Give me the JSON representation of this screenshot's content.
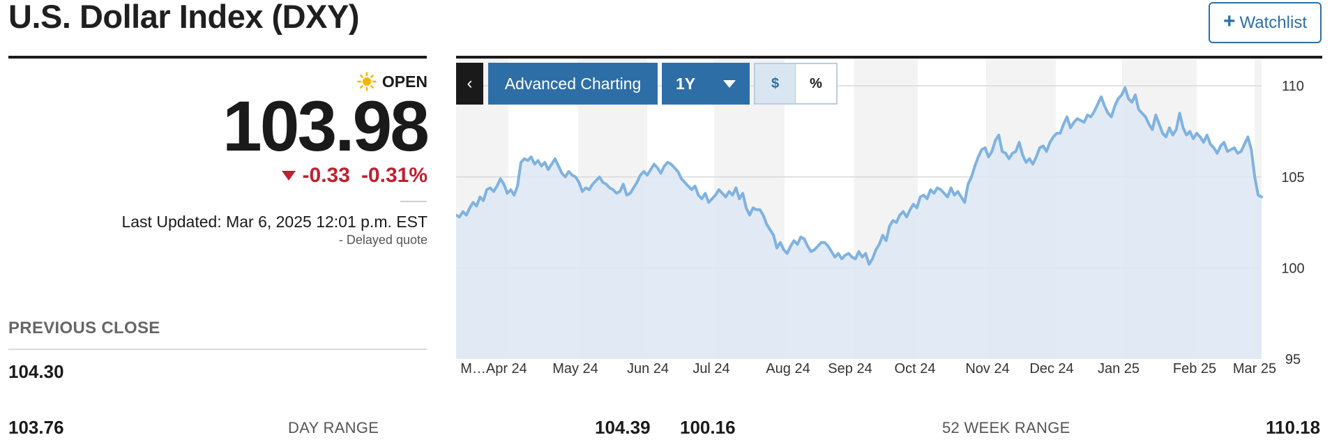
{
  "header": {
    "title": "U.S. Dollar Index (DXY)",
    "watchlist_plus": "+",
    "watchlist_label": "Watchlist"
  },
  "quote": {
    "status": "OPEN",
    "price": "103.98",
    "change": "-0.33",
    "change_percent": "-0.31%",
    "last_updated": "Last Updated: Mar 6, 2025 12:01 p.m. EST",
    "delayed": "-  Delayed quote"
  },
  "stats": {
    "previous_close_label": "PREVIOUS CLOSE",
    "previous_close": "104.30",
    "day_range_low": "103.76",
    "day_range_label": "DAY RANGE",
    "day_range_high": "104.39",
    "week52_low": "100.16",
    "week52_label": "52 WEEK RANGE",
    "week52_high": "110.18"
  },
  "toolbar": {
    "collapse_icon": "‹",
    "advanced_label": "Advanced Charting",
    "period_label": "1Y",
    "mode_dollar": "$",
    "mode_percent": "%"
  },
  "colors": {
    "accent_blue": "#2e6ea7",
    "negative_red": "#c0202f",
    "line_blue": "#7fb2e0",
    "area_fill": "#dde8f3"
  },
  "chart_data": {
    "type": "area",
    "title": "",
    "xlabel": "",
    "ylabel": "",
    "ylim": [
      95,
      111.5
    ],
    "y_ticks": [
      95,
      100,
      105,
      110
    ],
    "x_tick_labels": [
      "M…Apr 24",
      "May 24",
      "Jun 24",
      "Jul 24",
      "Aug 24",
      "Sep 24",
      "Oct 24",
      "Nov 24",
      "Dec 24",
      "Jan 25",
      "Feb 25",
      "Mar 25"
    ],
    "grid": "horizontal",
    "y_axis_side": "right",
    "series": [
      {
        "values": [
          102.9,
          102.8,
          103.1,
          102.9,
          103.3,
          103.6,
          103.4,
          103.9,
          103.7,
          104.3,
          104.4,
          104.2,
          104.5,
          104.9,
          104.6,
          104.1,
          104.3,
          104.0,
          104.5,
          105.8,
          106.0,
          105.9,
          106.1,
          105.7,
          105.9,
          105.6,
          105.8,
          105.4,
          105.7,
          106.0,
          105.6,
          105.2,
          105.0,
          105.3,
          105.1,
          105.0,
          104.7,
          104.2,
          104.4,
          104.3,
          104.6,
          104.8,
          105.0,
          104.7,
          104.6,
          104.4,
          104.3,
          104.1,
          104.2,
          104.6,
          104.0,
          104.1,
          104.4,
          104.7,
          105.1,
          105.3,
          105.1,
          105.4,
          105.7,
          105.5,
          105.2,
          105.6,
          105.8,
          105.7,
          105.5,
          105.3,
          104.9,
          104.7,
          104.5,
          104.3,
          104.5,
          104.0,
          103.8,
          104.1,
          103.6,
          103.8,
          104.0,
          104.3,
          104.1,
          103.9,
          104.2,
          104.0,
          104.4,
          103.8,
          104.1,
          103.3,
          102.9,
          103.3,
          103.2,
          103.2,
          102.9,
          102.4,
          102.1,
          101.8,
          101.1,
          101.4,
          101.0,
          100.8,
          101.2,
          101.5,
          101.3,
          101.7,
          101.6,
          101.2,
          100.9,
          101.0,
          101.2,
          101.4,
          101.4,
          101.2,
          100.9,
          100.6,
          100.8,
          100.5,
          100.7,
          100.8,
          100.6,
          100.5,
          100.9,
          100.6,
          100.8,
          100.2,
          100.5,
          101.0,
          101.3,
          101.8,
          101.5,
          102.3,
          102.6,
          102.5,
          102.9,
          103.1,
          102.8,
          103.2,
          103.5,
          103.3,
          103.9,
          104.0,
          103.8,
          104.3,
          104.1,
          104.4,
          104.3,
          104.1,
          103.9,
          104.4,
          104.0,
          104.2,
          103.9,
          103.6,
          104.6,
          105.0,
          105.6,
          106.1,
          106.5,
          106.6,
          106.1,
          106.4,
          107.0,
          107.3,
          106.4,
          106.3,
          106.0,
          106.3,
          106.4,
          106.9,
          106.2,
          105.8,
          106.0,
          105.7,
          106.1,
          106.6,
          106.7,
          106.4,
          106.9,
          107.2,
          107.4,
          107.4,
          107.9,
          108.3,
          107.7,
          108.0,
          108.2,
          108.1,
          108.0,
          108.4,
          108.3,
          108.6,
          109.0,
          109.4,
          108.9,
          108.5,
          108.3,
          108.9,
          109.3,
          109.5,
          109.9,
          109.3,
          109.1,
          109.5,
          108.7,
          108.5,
          108.3,
          107.9,
          107.6,
          108.4,
          107.9,
          107.4,
          107.2,
          107.7,
          107.3,
          107.6,
          108.5,
          107.7,
          107.3,
          107.5,
          107.1,
          107.4,
          107.2,
          106.9,
          107.3,
          106.8,
          106.6,
          106.3,
          106.7,
          106.9,
          106.4,
          106.5,
          106.6,
          106.3,
          106.4,
          106.8,
          107.2,
          106.5,
          105.0,
          104.0,
          103.9
        ]
      }
    ]
  }
}
